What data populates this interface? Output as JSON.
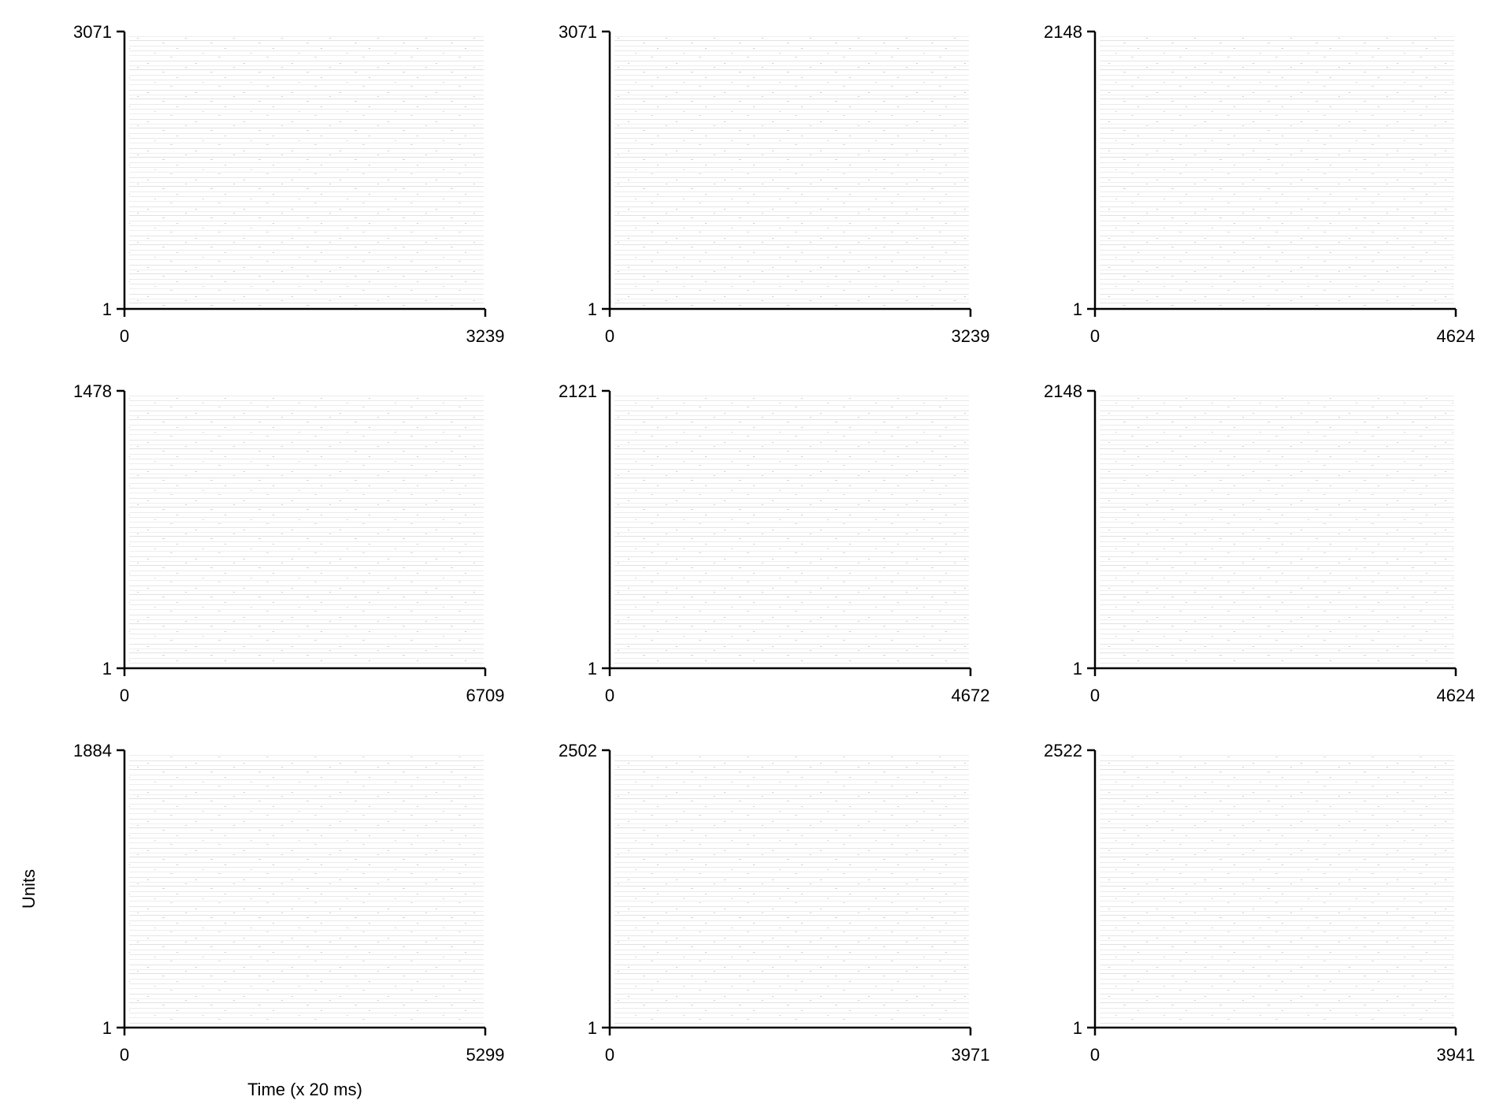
{
  "ylabel": "Units",
  "xlabel": "Time (x 20 ms)",
  "chart_data": [
    {
      "type": "heatmap",
      "x_range": [
        0,
        3239
      ],
      "y_range": [
        1,
        3071
      ],
      "x_ticks": [
        "0",
        "3239"
      ],
      "y_ticks": [
        "1",
        "3071"
      ]
    },
    {
      "type": "heatmap",
      "x_range": [
        0,
        3239
      ],
      "y_range": [
        1,
        3071
      ],
      "x_ticks": [
        "0",
        "3239"
      ],
      "y_ticks": [
        "1",
        "3071"
      ]
    },
    {
      "type": "heatmap",
      "x_range": [
        0,
        4624
      ],
      "y_range": [
        1,
        2148
      ],
      "x_ticks": [
        "0",
        "4624"
      ],
      "y_ticks": [
        "1",
        "2148"
      ]
    },
    {
      "type": "heatmap",
      "x_range": [
        0,
        6709
      ],
      "y_range": [
        1,
        1478
      ],
      "x_ticks": [
        "0",
        "6709"
      ],
      "y_ticks": [
        "1",
        "1478"
      ]
    },
    {
      "type": "heatmap",
      "x_range": [
        0,
        4672
      ],
      "y_range": [
        1,
        2121
      ],
      "x_ticks": [
        "0",
        "4672"
      ],
      "y_ticks": [
        "1",
        "2121"
      ]
    },
    {
      "type": "heatmap",
      "x_range": [
        0,
        4624
      ],
      "y_range": [
        1,
        2148
      ],
      "x_ticks": [
        "0",
        "4624"
      ],
      "y_ticks": [
        "1",
        "2148"
      ]
    },
    {
      "type": "heatmap",
      "x_range": [
        0,
        5299
      ],
      "y_range": [
        1,
        1884
      ],
      "x_ticks": [
        "0",
        "5299"
      ],
      "y_ticks": [
        "1",
        "1884"
      ]
    },
    {
      "type": "heatmap",
      "x_range": [
        0,
        3971
      ],
      "y_range": [
        1,
        2502
      ],
      "x_ticks": [
        "0",
        "3971"
      ],
      "y_ticks": [
        "1",
        "2502"
      ]
    },
    {
      "type": "heatmap",
      "x_range": [
        0,
        3941
      ],
      "y_range": [
        1,
        2522
      ],
      "x_ticks": [
        "0",
        "3941"
      ],
      "y_ticks": [
        "1",
        "2522"
      ]
    }
  ]
}
